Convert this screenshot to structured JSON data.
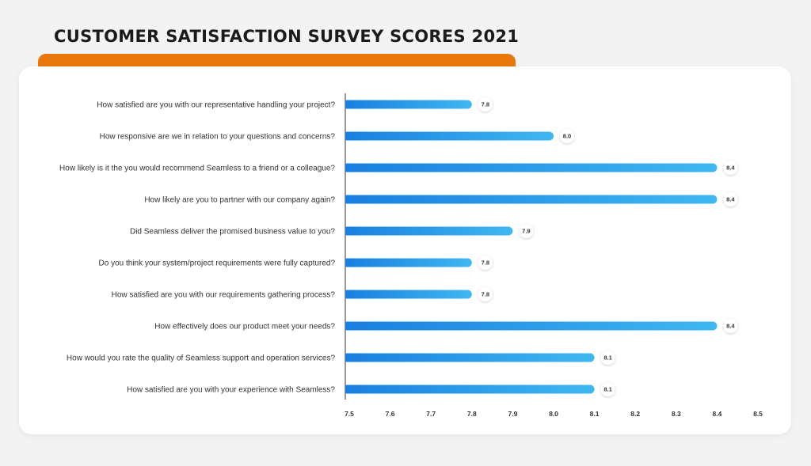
{
  "title": "CUSTOMER SATISFACTION SURVEY SCORES 2021",
  "colors": {
    "accent": "#e8770c",
    "bar_start": "#1a7fe0",
    "bar_end": "#3fb8f0",
    "background": "#f3f3f3",
    "card": "#ffffff"
  },
  "chart_data": {
    "type": "bar",
    "orientation": "horizontal",
    "title": "CUSTOMER SATISFACTION SURVEY SCORES 2021",
    "categories": [
      "How satisfied are you with our representative handling your project?",
      "How responsive are we in relation to your questions and concerns?",
      "How likely is it the you would recommend Seamless to a friend or a colleague?",
      "How likely are you to partner with our company again?",
      "Did Seamless deliver the promised business value to you?",
      "Do you think your system/project requirements were fully captured?",
      "How satisfied are you with our requirements gathering process?",
      "How effectively does our product meet your needs?",
      "How would you rate the quality of Seamless support and operation services?",
      "How satisfied are you with your experience with Seamless?"
    ],
    "values": [
      7.8,
      8.0,
      8.4,
      8.4,
      7.9,
      7.8,
      7.8,
      8.4,
      8.1,
      8.1
    ],
    "value_labels": [
      "7.8",
      "8.0",
      "8.4",
      "8.4",
      "7.9",
      "7.8",
      "7.8",
      "8.4",
      "8.1",
      "8.1"
    ],
    "xlim": [
      7.5,
      8.5
    ],
    "xticks": [
      "7.5",
      "7.6",
      "7.7",
      "7.8",
      "7.9",
      "8.0",
      "8.1",
      "8.2",
      "8.3",
      "8.4",
      "8.5"
    ],
    "xlabel": "",
    "ylabel": "",
    "grid": false,
    "legend": "none"
  }
}
